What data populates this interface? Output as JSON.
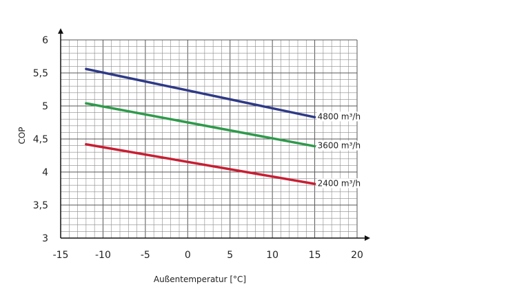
{
  "chart_data": {
    "type": "line",
    "xlabel": "Außentemperatur [°C]",
    "ylabel": "COP",
    "xlim": [
      -15,
      20
    ],
    "ylim": [
      3,
      6
    ],
    "x_ticks": [
      -15,
      -10,
      -5,
      0,
      5,
      10,
      15,
      20
    ],
    "x_tick_labels": [
      "-15",
      "-10",
      "-5",
      "0",
      "5",
      "10",
      "15",
      "20"
    ],
    "y_ticks": [
      3,
      3.5,
      4,
      4.5,
      5,
      5.5,
      6
    ],
    "y_tick_labels": [
      "3",
      "3,5",
      "4",
      "4,5",
      "5",
      "5,5",
      "6"
    ],
    "grid": true,
    "series": [
      {
        "name": "4800 m³/h",
        "color": "#2e3a87",
        "x": [
          -12,
          15
        ],
        "y": [
          5.56,
          4.83
        ]
      },
      {
        "name": "3600 m³/h",
        "color": "#2e9a4a",
        "x": [
          -12,
          15
        ],
        "y": [
          5.04,
          4.39
        ]
      },
      {
        "name": "2400 m³/h",
        "color": "#c81e32",
        "x": [
          -12,
          15
        ],
        "y": [
          4.42,
          3.82
        ]
      }
    ]
  }
}
